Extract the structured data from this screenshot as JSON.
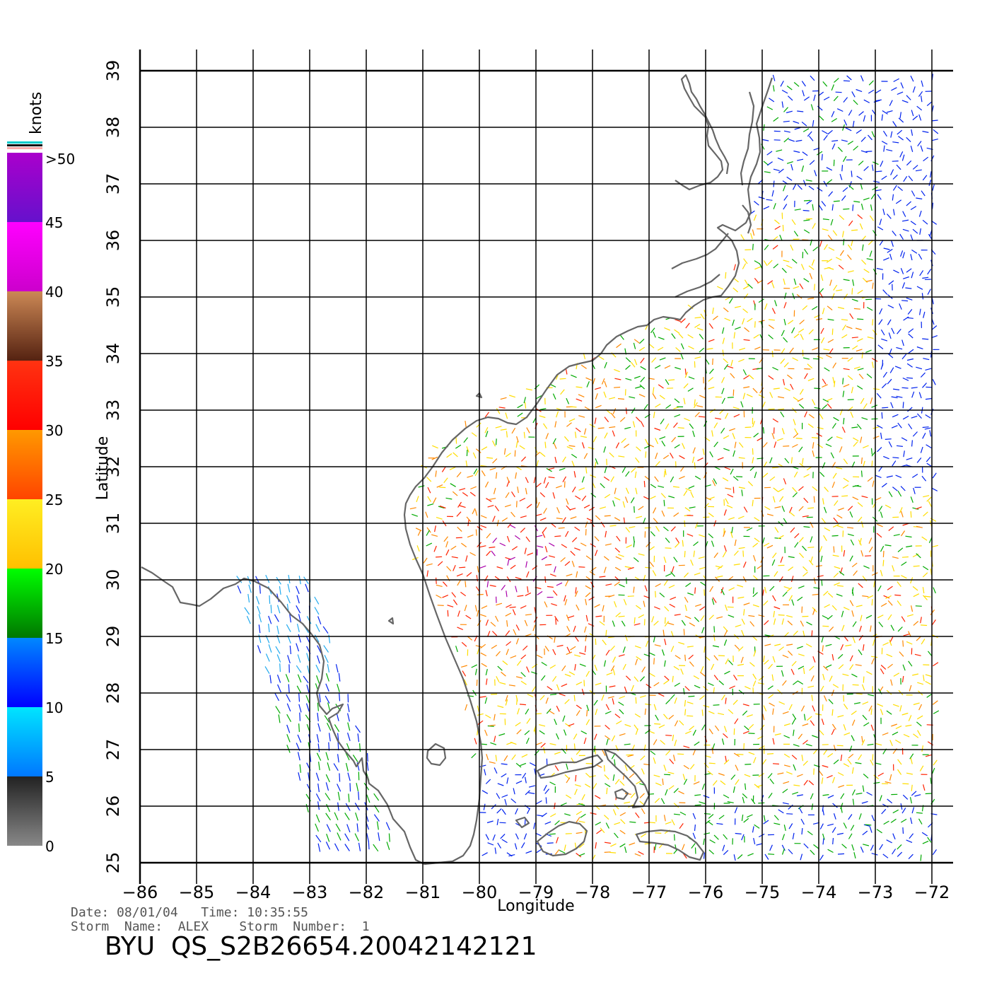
{
  "colorbar": {
    "title": "knots",
    "labels": [
      ">50",
      "45",
      "40",
      "35",
      "30",
      "25",
      "20",
      "15",
      "10",
      "5",
      "0"
    ],
    "label_values": [
      50,
      45,
      40,
      35,
      30,
      25,
      20,
      15,
      10,
      5,
      0
    ],
    "segments": [
      {
        "from": 0,
        "to": 5,
        "top_color": "#222222",
        "bottom_color": "#888888"
      },
      {
        "from": 5,
        "to": 10,
        "top_color": "#00e5ff",
        "bottom_color": "#0077ff"
      },
      {
        "from": 10,
        "to": 15,
        "top_color": "#0088ff",
        "bottom_color": "#0000ff"
      },
      {
        "from": 15,
        "to": 20,
        "top_color": "#00ff00",
        "bottom_color": "#007700"
      },
      {
        "from": 20,
        "to": 25,
        "top_color": "#ffee22",
        "bottom_color": "#ffc000"
      },
      {
        "from": 25,
        "to": 30,
        "top_color": "#ff9900",
        "bottom_color": "#ff4400"
      },
      {
        "from": 30,
        "to": 35,
        "top_color": "#ff3311",
        "bottom_color": "#ff0000"
      },
      {
        "from": 35,
        "to": 40,
        "top_color": "#cc8855",
        "bottom_color": "#552211"
      },
      {
        "from": 40,
        "to": 45,
        "top_color": "#ff00ff",
        "bottom_color": "#cc00cc"
      },
      {
        "from": 45,
        "to": 50,
        "top_color": "#aa00cc",
        "bottom_color": "#6611cc"
      }
    ],
    "top_stripes": [
      "#00cccc",
      "#111111",
      "#ffaaaa"
    ]
  },
  "map": {
    "xlabel": "Longitude",
    "ylabel": "Latitude",
    "lon_range": [
      -86,
      -72
    ],
    "lat_range": [
      25,
      39
    ],
    "lon_ticks": [
      -86,
      -85,
      -84,
      -83,
      -82,
      -81,
      -80,
      -79,
      -78,
      -77,
      -76,
      -75,
      -74,
      -73,
      -72
    ],
    "lat_ticks": [
      25,
      26,
      27,
      28,
      29,
      30,
      31,
      32,
      33,
      34,
      35,
      36,
      37,
      38,
      39
    ],
    "lon_tick_labels": [
      "−86",
      "−85",
      "−84",
      "−83",
      "−82",
      "−81",
      "−80",
      "−79",
      "−78",
      "−77",
      "−76",
      "−75",
      "−74",
      "−73",
      "−72"
    ],
    "lat_tick_labels": [
      "25",
      "26",
      "27",
      "28",
      "29",
      "30",
      "31",
      "32",
      "33",
      "34",
      "35",
      "36",
      "37",
      "38",
      "39"
    ],
    "grid": true,
    "coastline_color": "#666666",
    "wind_field_description_colors": [
      "#0022ee",
      "#00aa00",
      "#ffdd00",
      "#ff8800",
      "#ff2200",
      "#aa00aa"
    ]
  },
  "footer": {
    "date_line": "Date: 08/01/04   Time: 10:35:55",
    "storm_line": "Storm  Name:  ALEX    Storm  Number:  1",
    "product_id": "BYU  QS_S2B26654.20042142121"
  }
}
